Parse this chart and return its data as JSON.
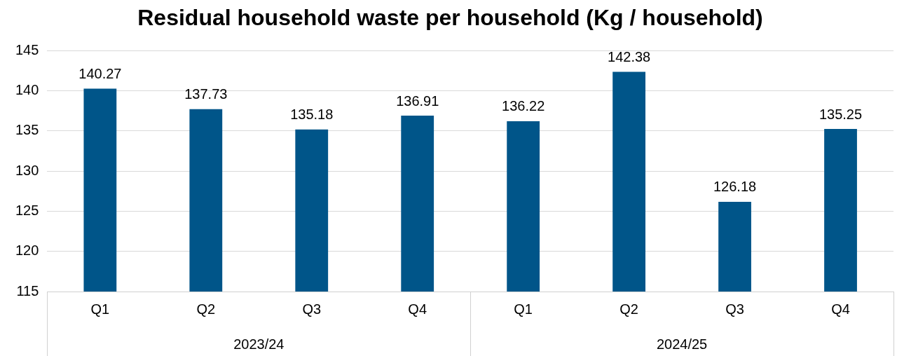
{
  "chart_data": {
    "type": "bar",
    "title": "Residual household waste per household (Kg / household)",
    "categories": [
      "Q1",
      "Q2",
      "Q3",
      "Q4",
      "Q1",
      "Q2",
      "Q3",
      "Q4"
    ],
    "values": [
      140.27,
      137.73,
      135.18,
      136.91,
      136.22,
      142.38,
      126.18,
      135.25
    ],
    "color": "#005589",
    "ylim": [
      115,
      145
    ],
    "yticks": [
      115,
      120,
      125,
      130,
      135,
      140,
      145
    ],
    "grid": "y",
    "data_labels": true,
    "annotations": [
      "2023/24",
      "2024/25"
    ]
  }
}
